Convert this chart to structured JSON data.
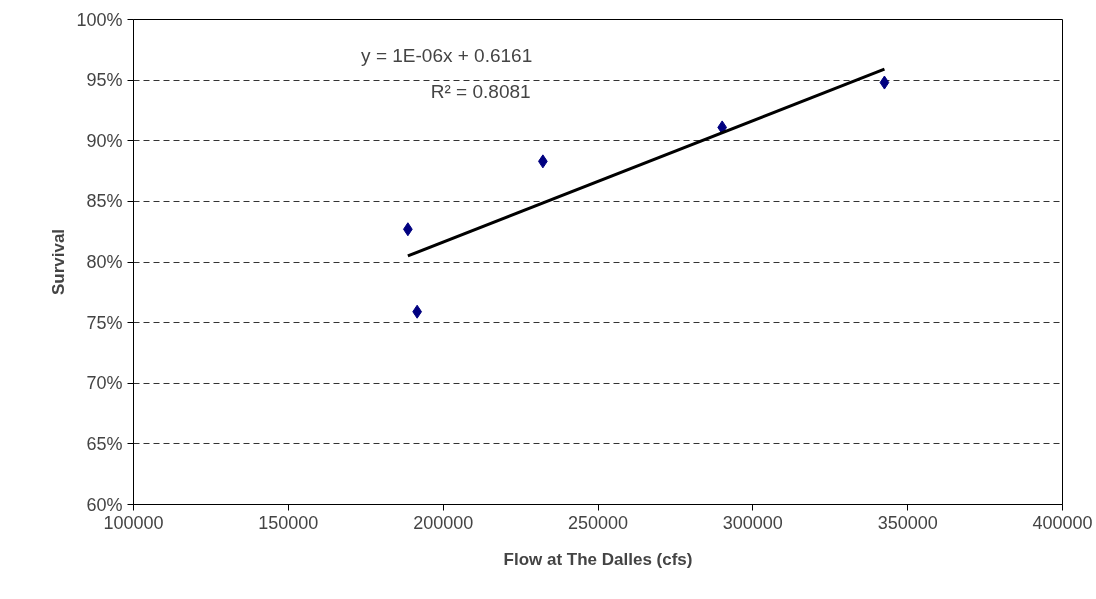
{
  "chart_data": {
    "type": "scatter",
    "xlabel": "Flow at The Dalles (cfs)",
    "ylabel": "Survival",
    "x": [
      188600,
      191600,
      232200,
      290100,
      342500
    ],
    "series": [
      {
        "color": "#000080",
        "marker": "diamond",
        "values": [
          0.827,
          0.759,
          0.883,
          0.911,
          0.948
        ]
      },
      {
        "type": "line",
        "color": "#000000",
        "line_style": "solid",
        "x": [
          188600,
          342500
        ],
        "values": [
          0.805,
          0.959
        ]
      }
    ],
    "annotations": [
      "y = 1E-06x + 0.6161",
      "R² = 0.8081"
    ],
    "xlim": [
      100000,
      400000
    ],
    "xticks": [
      100000,
      150000,
      200000,
      250000,
      300000,
      350000,
      400000
    ],
    "ylim": [
      0.6,
      1.0
    ],
    "yticks": [
      {
        "value": 0.6,
        "label": "60%"
      },
      {
        "value": 0.65,
        "label": "65%"
      },
      {
        "value": 0.7,
        "label": "70%"
      },
      {
        "value": 0.75,
        "label": "75%"
      },
      {
        "value": 0.8,
        "label": "80%"
      },
      {
        "value": 0.85,
        "label": "85%"
      },
      {
        "value": 0.9,
        "label": "90%"
      },
      {
        "value": 0.95,
        "label": "95%"
      },
      {
        "value": 1.0,
        "label": "100%"
      }
    ],
    "grid": "y"
  }
}
